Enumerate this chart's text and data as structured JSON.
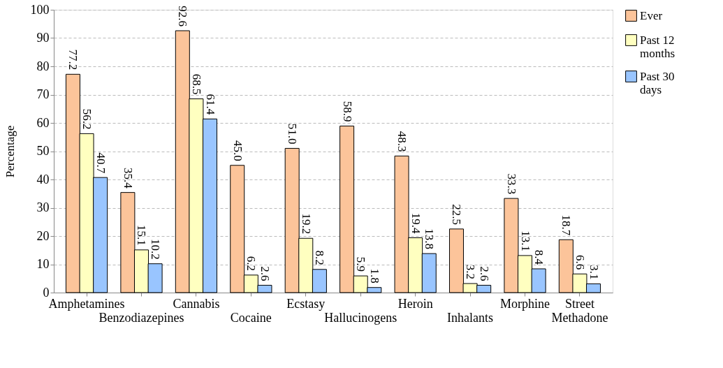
{
  "chart_data": {
    "type": "bar",
    "ylabel": "Percentage",
    "categories": [
      "Amphetamines",
      "Benzodiazepines",
      "Cannabis",
      "Cocaine",
      "Ecstasy",
      "Hallucinogens",
      "Heroin",
      "Inhalants",
      "Morphine",
      "Street Methadone"
    ],
    "series": [
      {
        "name": "Ever",
        "color": "#fcc49a",
        "values": [
          77.2,
          35.4,
          92.6,
          45.0,
          51.0,
          58.9,
          48.3,
          22.5,
          33.3,
          18.7
        ],
        "value_labels": [
          "77.2",
          "35.4",
          "92.6",
          "45.0",
          "51.0",
          "58.9",
          "48.3",
          "22.5",
          "33.3",
          "18.7"
        ]
      },
      {
        "name": "Past 12 months",
        "color": "#ffffc0",
        "values": [
          56.2,
          15.1,
          68.5,
          6.2,
          19.2,
          5.9,
          19.4,
          3.2,
          13.1,
          6.6
        ],
        "value_labels": [
          "56.2",
          "15.1",
          "68.5",
          "6.2",
          "19.2",
          "5.9",
          "19.4",
          "3.2",
          "13.1",
          "6.6"
        ]
      },
      {
        "name": "Past 30 days",
        "color": "#99c5ff",
        "values": [
          40.7,
          10.2,
          61.4,
          2.6,
          8.2,
          1.8,
          13.8,
          2.6,
          8.4,
          3.1
        ],
        "value_labels": [
          "40.7",
          "10.2",
          "61.4",
          "2.6",
          "8.2",
          "1.8",
          "13.8",
          "2.6",
          "8.4",
          "3.1"
        ]
      }
    ],
    "ylim": [
      0,
      100
    ],
    "yticks": [
      0,
      10,
      20,
      30,
      40,
      50,
      60,
      70,
      80,
      90,
      100
    ],
    "grid": "y",
    "legend": "right"
  }
}
